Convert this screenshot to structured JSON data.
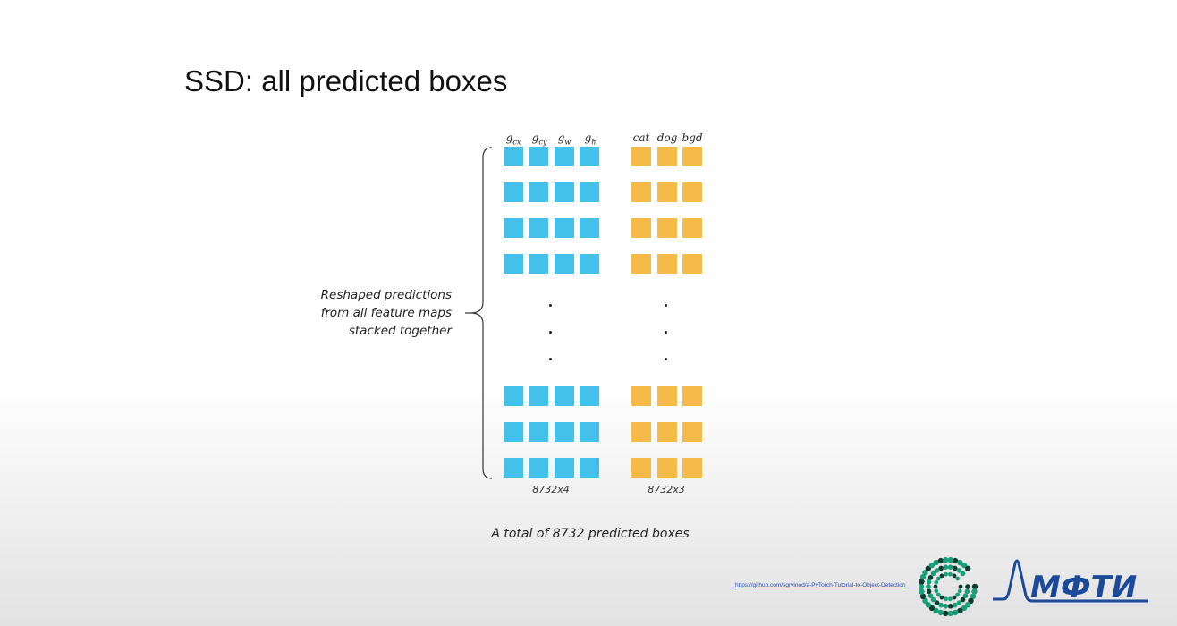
{
  "slide": {
    "title": "SSD: all predicted boxes",
    "side_label": {
      "line1": "Reshaped predictions",
      "line2": "from all feature maps",
      "line3": "stacked together"
    },
    "caption": "A total of 8732 predicted boxes",
    "link": "https://github.com/sgrvinod/a-PyTorch-Tutorial-to-Object-Detection",
    "logo_text": "МФТИ"
  },
  "diagram": {
    "loc_columns": [
      {
        "base": "g",
        "sub": "cx"
      },
      {
        "base": "g",
        "sub": "cy"
      },
      {
        "base": "g",
        "sub": "w"
      },
      {
        "base": "g",
        "sub": "h"
      }
    ],
    "class_columns": [
      "cat",
      "dog",
      "bgd"
    ],
    "loc_shape": "8732x4",
    "class_shape": "8732x3",
    "loc_color": "#44c1ea",
    "class_color": "#f6bb47",
    "rows_top": 4,
    "rows_bottom": 3
  }
}
